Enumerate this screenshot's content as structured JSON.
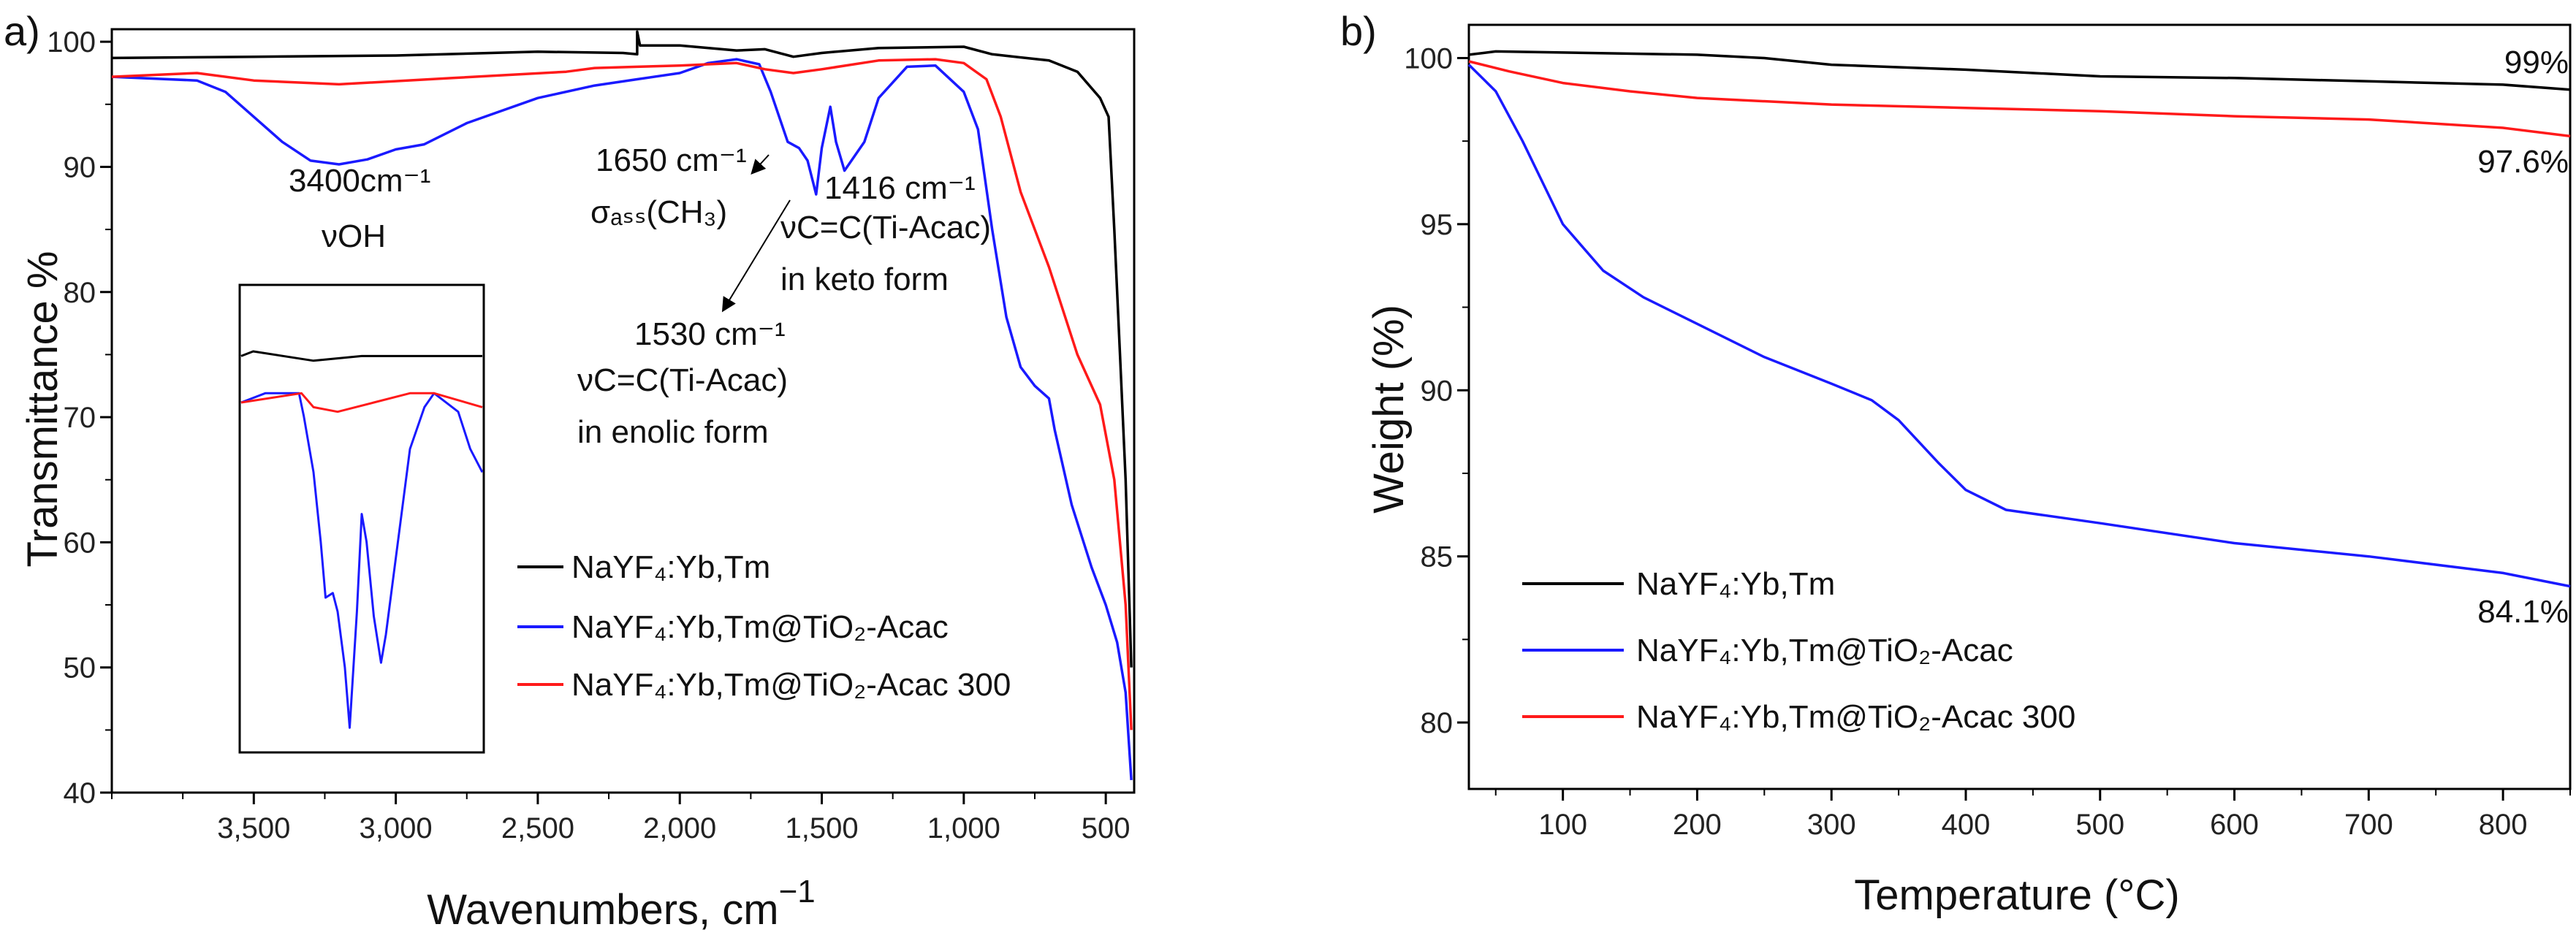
{
  "chart_data": [
    {
      "panel_label": "a)",
      "type": "line",
      "xlabel": "Wavenumbers, cm",
      "xlabel_sup": "−1",
      "ylabel": "Transmittance %",
      "xlim": [
        4000,
        400
      ],
      "ylim": [
        40,
        101
      ],
      "xticks": [
        3500,
        3000,
        2500,
        2000,
        1500,
        1000,
        500
      ],
      "xtick_labels": [
        "3,500",
        "3,000",
        "2,500",
        "2,000",
        "1,500",
        "1,000",
        "500"
      ],
      "yticks": [
        40,
        50,
        60,
        70,
        80,
        90,
        100
      ],
      "ytick_labels": [
        "40",
        "50",
        "60",
        "70",
        "80",
        "90",
        "100"
      ],
      "legend_position": "center-right",
      "series": [
        {
          "name": "NaYF₄:Yb,Tm",
          "color": "#000000",
          "points": [
            [
              4000,
              98.7
            ],
            [
              3500,
              98.8
            ],
            [
              3000,
              98.9
            ],
            [
              2500,
              99.2
            ],
            [
              2200,
              99.1
            ],
            [
              2150,
              99.0
            ],
            [
              2150,
              100.8
            ],
            [
              2140,
              99.7
            ],
            [
              2000,
              99.7
            ],
            [
              1800,
              99.3
            ],
            [
              1700,
              99.4
            ],
            [
              1600,
              98.8
            ],
            [
              1500,
              99.1
            ],
            [
              1300,
              99.5
            ],
            [
              1000,
              99.6
            ],
            [
              900,
              99.0
            ],
            [
              700,
              98.5
            ],
            [
              600,
              97.6
            ],
            [
              520,
              95.5
            ],
            [
              490,
              94
            ],
            [
              470,
              85
            ],
            [
              450,
              75
            ],
            [
              430,
              65
            ],
            [
              410,
              50
            ]
          ]
        },
        {
          "name": "NaYF₄:Yb,Tm@TiO₂-Acac",
          "color": "#1a1aff",
          "points": [
            [
              4000,
              97.2
            ],
            [
              3700,
              96.9
            ],
            [
              3600,
              96
            ],
            [
              3500,
              94
            ],
            [
              3400,
              92
            ],
            [
              3300,
              90.5
            ],
            [
              3200,
              90.2
            ],
            [
              3100,
              90.6
            ],
            [
              3000,
              91.4
            ],
            [
              2900,
              91.8
            ],
            [
              2750,
              93.5
            ],
            [
              2500,
              95.5
            ],
            [
              2300,
              96.5
            ],
            [
              2150,
              97
            ],
            [
              2000,
              97.5
            ],
            [
              1900,
              98.3
            ],
            [
              1800,
              98.6
            ],
            [
              1720,
              98.2
            ],
            [
              1680,
              96
            ],
            [
              1620,
              92
            ],
            [
              1580,
              91.5
            ],
            [
              1550,
              90.5
            ],
            [
              1520,
              87.8
            ],
            [
              1500,
              91.5
            ],
            [
              1470,
              94.8
            ],
            [
              1450,
              92
            ],
            [
              1420,
              89.7
            ],
            [
              1350,
              92
            ],
            [
              1300,
              95.5
            ],
            [
              1200,
              98
            ],
            [
              1100,
              98.1
            ],
            [
              1000,
              96
            ],
            [
              950,
              93
            ],
            [
              900,
              85
            ],
            [
              850,
              78
            ],
            [
              800,
              74
            ],
            [
              750,
              72.5
            ],
            [
              700,
              71.5
            ],
            [
              680,
              69
            ],
            [
              620,
              63
            ],
            [
              550,
              58
            ],
            [
              500,
              55
            ],
            [
              460,
              52
            ],
            [
              430,
              48
            ],
            [
              410,
              41
            ]
          ]
        },
        {
          "name": "NaYF₄:Yb,Tm@TiO₂-Acac 300",
          "color": "#ff1a1a",
          "points": [
            [
              4000,
              97.2
            ],
            [
              3700,
              97.5
            ],
            [
              3500,
              96.9
            ],
            [
              3200,
              96.6
            ],
            [
              2800,
              97.1
            ],
            [
              2400,
              97.6
            ],
            [
              2300,
              97.9
            ],
            [
              2150,
              98.0
            ],
            [
              2000,
              98.1
            ],
            [
              1800,
              98.3
            ],
            [
              1700,
              97.8
            ],
            [
              1600,
              97.5
            ],
            [
              1500,
              97.8
            ],
            [
              1300,
              98.5
            ],
            [
              1100,
              98.6
            ],
            [
              1000,
              98.3
            ],
            [
              920,
              97
            ],
            [
              870,
              94
            ],
            [
              800,
              88
            ],
            [
              700,
              82
            ],
            [
              600,
              75
            ],
            [
              520,
              71
            ],
            [
              470,
              65
            ],
            [
              430,
              55
            ],
            [
              410,
              45
            ]
          ]
        }
      ],
      "inset": {
        "axes": "none (arbitrary units 0-100)",
        "series": [
          {
            "name": "NaYF₄:Yb,Tm",
            "color": "#000000",
            "points": [
              [
                0,
                85
              ],
              [
                5,
                86
              ],
              [
                30,
                84
              ],
              [
                50,
                85
              ],
              [
                100,
                85
              ]
            ]
          },
          {
            "name": "NaYF₄:Yb,Tm@TiO₂-Acac",
            "color": "#1a1aff",
            "points": [
              [
                0,
                75
              ],
              [
                10,
                77
              ],
              [
                24,
                77
              ],
              [
                26,
                72
              ],
              [
                30,
                60
              ],
              [
                33,
                45
              ],
              [
                35,
                33
              ],
              [
                38,
                34
              ],
              [
                40,
                30
              ],
              [
                43,
                18
              ],
              [
                45,
                5
              ],
              [
                48,
                30
              ],
              [
                50,
                51
              ],
              [
                52,
                45
              ],
              [
                55,
                29
              ],
              [
                58,
                19
              ],
              [
                60,
                25
              ],
              [
                65,
                45
              ],
              [
                70,
                65
              ],
              [
                76,
                74
              ],
              [
                80,
                77
              ],
              [
                90,
                73
              ],
              [
                95,
                65
              ],
              [
                100,
                60
              ]
            ]
          },
          {
            "name": "NaYF₄:Yb,Tm@TiO₂-Acac 300",
            "color": "#ff1a1a",
            "points": [
              [
                0,
                75
              ],
              [
                25,
                77
              ],
              [
                30,
                74
              ],
              [
                40,
                73
              ],
              [
                55,
                75
              ],
              [
                70,
                77
              ],
              [
                80,
                77
              ],
              [
                100,
                74
              ]
            ]
          }
        ]
      },
      "annotations": {
        "a1": "3400cm⁻¹",
        "a2": "νOH",
        "a3": "1650 cm⁻¹",
        "a4": "σₐₛₛ(CH₃)",
        "a5": "1416 cm⁻¹",
        "a6": "νC=C(Ti-Acac)",
        "a7": "in  keto form",
        "a8": "1530 cm⁻¹",
        "a9": "νC=C(Ti-Acac)",
        "a10": "in enolic form"
      }
    },
    {
      "panel_label": "b)",
      "type": "line",
      "xlabel": "Temperature (°C)",
      "ylabel": "Weight (%)",
      "xlim": [
        30,
        850
      ],
      "ylim": [
        78,
        101
      ],
      "xticks": [
        100,
        200,
        300,
        400,
        500,
        600,
        700,
        800
      ],
      "xtick_labels": [
        "100",
        "200",
        "300",
        "400",
        "500",
        "600",
        "700",
        "800"
      ],
      "yticks": [
        80,
        85,
        90,
        95,
        100
      ],
      "ytick_labels": [
        "80",
        "85",
        "90",
        "95",
        "100"
      ],
      "legend_position": "bottom-left",
      "series": [
        {
          "name": "NaYF₄:Yb,Tm",
          "color": "#000000",
          "end_label": "99%",
          "points": [
            [
              30,
              100.1
            ],
            [
              50,
              100.2
            ],
            [
              200,
              100.1
            ],
            [
              250,
              100.0
            ],
            [
              300,
              99.8
            ],
            [
              400,
              99.65
            ],
            [
              500,
              99.45
            ],
            [
              600,
              99.4
            ],
            [
              700,
              99.3
            ],
            [
              800,
              99.2
            ],
            [
              850,
              99.05
            ]
          ]
        },
        {
          "name": "NaYF₄:Yb,Tm@TiO₂-Acac",
          "color": "#1a1aff",
          "end_label": "84.1%",
          "points": [
            [
              30,
              99.8
            ],
            [
              50,
              99.0
            ],
            [
              70,
              97.5
            ],
            [
              100,
              95.0
            ],
            [
              130,
              93.6
            ],
            [
              160,
              92.8
            ],
            [
              200,
              92.0
            ],
            [
              250,
              91.0
            ],
            [
              300,
              90.2
            ],
            [
              330,
              89.7
            ],
            [
              350,
              89.1
            ],
            [
              380,
              87.8
            ],
            [
              400,
              87.0
            ],
            [
              430,
              86.4
            ],
            [
              500,
              86.0
            ],
            [
              600,
              85.4
            ],
            [
              700,
              85.0
            ],
            [
              800,
              84.5
            ],
            [
              850,
              84.1
            ]
          ]
        },
        {
          "name": "NaYF₄:Yb,Tm@TiO₂-Acac 300",
          "color": "#ff1a1a",
          "end_label": "97.6%",
          "points": [
            [
              30,
              99.9
            ],
            [
              60,
              99.6
            ],
            [
              100,
              99.25
            ],
            [
              150,
              99.0
            ],
            [
              200,
              98.8
            ],
            [
              300,
              98.6
            ],
            [
              400,
              98.5
            ],
            [
              500,
              98.4
            ],
            [
              600,
              98.25
            ],
            [
              700,
              98.15
            ],
            [
              800,
              97.9
            ],
            [
              850,
              97.65
            ]
          ]
        }
      ]
    }
  ]
}
